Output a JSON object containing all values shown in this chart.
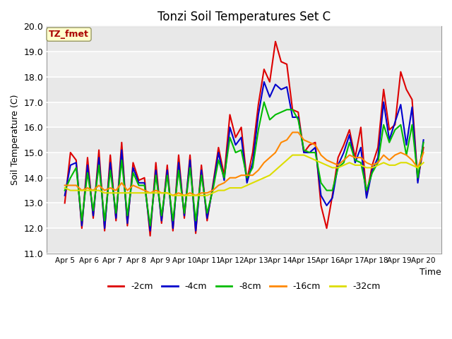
{
  "title": "Tonzi Soil Temperatures Set C",
  "xlabel": "Time",
  "ylabel": "Soil Temperature (C)",
  "ylim": [
    11.0,
    20.0
  ],
  "yticks": [
    11.0,
    12.0,
    13.0,
    14.0,
    15.0,
    16.0,
    17.0,
    18.0,
    19.0,
    20.0
  ],
  "xtick_labels": [
    "Apr 5",
    "Apr 6",
    "Apr 7",
    "Apr 8",
    "Apr 9",
    "Apr 10",
    "Apr 11",
    "Apr 12",
    "Apr 13",
    "Apr 14",
    "Apr 15",
    "Apr 16",
    "Apr 17",
    "Apr 18",
    "Apr 19",
    "Apr 20"
  ],
  "annotation_text": "TZ_fmet",
  "annotation_color": "#aa0000",
  "annotation_bg": "#ffffcc",
  "annotation_border": "#999966",
  "colors": {
    "-2cm": "#dd0000",
    "-4cm": "#0000cc",
    "-8cm": "#00bb00",
    "-16cm": "#ff8800",
    "-32cm": "#dddd00"
  },
  "linewidth": 1.5,
  "plot_bg_bands": [
    "#e8e8e8",
    "#f0f0f0"
  ],
  "fig_bg": "#ffffff",
  "series": {
    "-2cm": [
      13.0,
      15.0,
      14.7,
      12.0,
      14.8,
      12.4,
      15.1,
      11.9,
      14.9,
      12.3,
      15.4,
      12.1,
      14.6,
      13.9,
      14.0,
      11.7,
      14.6,
      12.2,
      14.5,
      11.9,
      14.9,
      12.4,
      14.9,
      11.8,
      14.5,
      12.3,
      13.7,
      15.2,
      14.1,
      16.5,
      15.6,
      16.0,
      13.9,
      15.0,
      16.9,
      18.3,
      17.8,
      19.4,
      18.6,
      18.5,
      16.7,
      16.6,
      15.0,
      15.3,
      15.4,
      12.9,
      12.0,
      13.3,
      14.8,
      15.3,
      15.9,
      14.8,
      16.0,
      13.3,
      14.5,
      15.2,
      17.5,
      15.9,
      16.1,
      18.2,
      17.5,
      17.1,
      13.9,
      15.2
    ],
    "-4cm": [
      13.3,
      14.5,
      14.6,
      12.1,
      14.5,
      12.5,
      14.8,
      12.0,
      14.6,
      12.4,
      15.1,
      12.2,
      14.4,
      13.8,
      13.8,
      11.9,
      14.3,
      12.3,
      14.3,
      12.0,
      14.6,
      12.5,
      14.7,
      11.9,
      14.3,
      12.4,
      13.6,
      15.0,
      13.9,
      16.0,
      15.3,
      15.6,
      13.8,
      14.6,
      16.5,
      17.8,
      17.2,
      17.7,
      17.5,
      17.6,
      16.4,
      16.4,
      15.0,
      15.0,
      15.2,
      13.3,
      12.9,
      13.2,
      14.5,
      15.0,
      15.7,
      14.6,
      15.2,
      13.2,
      14.3,
      14.8,
      17.0,
      15.5,
      16.2,
      16.9,
      15.3,
      16.8,
      13.8,
      15.5
    ],
    "-8cm": [
      13.5,
      14.0,
      14.4,
      12.3,
      14.2,
      12.7,
      14.5,
      12.3,
      14.3,
      12.6,
      14.7,
      12.5,
      14.2,
      13.7,
      13.7,
      12.1,
      14.1,
      12.5,
      14.1,
      12.3,
      14.3,
      12.6,
      14.4,
      12.3,
      14.1,
      12.6,
      13.5,
      14.7,
      14.0,
      15.6,
      15.0,
      15.1,
      14.0,
      14.4,
      15.9,
      17.0,
      16.3,
      16.5,
      16.6,
      16.7,
      16.7,
      16.3,
      15.1,
      15.0,
      15.0,
      13.8,
      13.5,
      13.5,
      14.4,
      14.6,
      15.4,
      14.7,
      14.6,
      13.5,
      14.2,
      14.6,
      16.1,
      15.4,
      15.9,
      16.1,
      14.9,
      16.1,
      14.0,
      15.4
    ],
    "-16cm": [
      13.7,
      13.7,
      13.7,
      13.5,
      13.6,
      13.5,
      13.7,
      13.5,
      13.6,
      13.5,
      13.8,
      13.5,
      13.7,
      13.6,
      13.5,
      13.4,
      13.5,
      13.4,
      13.4,
      13.3,
      13.4,
      13.3,
      13.4,
      13.3,
      13.4,
      13.4,
      13.5,
      13.7,
      13.8,
      14.0,
      14.0,
      14.1,
      14.1,
      14.1,
      14.3,
      14.6,
      14.8,
      15.0,
      15.4,
      15.5,
      15.8,
      15.8,
      15.5,
      15.4,
      15.3,
      14.9,
      14.7,
      14.6,
      14.5,
      14.7,
      14.9,
      14.8,
      14.8,
      14.6,
      14.5,
      14.6,
      14.9,
      14.7,
      14.9,
      15.0,
      14.9,
      14.7,
      14.4,
      15.0
    ],
    "-32cm": [
      13.6,
      13.5,
      13.5,
      13.5,
      13.5,
      13.5,
      13.5,
      13.4,
      13.4,
      13.4,
      13.4,
      13.4,
      13.4,
      13.4,
      13.4,
      13.4,
      13.4,
      13.4,
      13.4,
      13.3,
      13.3,
      13.3,
      13.3,
      13.3,
      13.3,
      13.3,
      13.4,
      13.5,
      13.5,
      13.6,
      13.6,
      13.6,
      13.7,
      13.8,
      13.9,
      14.0,
      14.1,
      14.3,
      14.5,
      14.7,
      14.9,
      14.9,
      14.9,
      14.8,
      14.7,
      14.6,
      14.5,
      14.4,
      14.4,
      14.5,
      14.6,
      14.5,
      14.5,
      14.4,
      14.4,
      14.5,
      14.6,
      14.5,
      14.5,
      14.6,
      14.6,
      14.5,
      14.4,
      14.6
    ]
  }
}
